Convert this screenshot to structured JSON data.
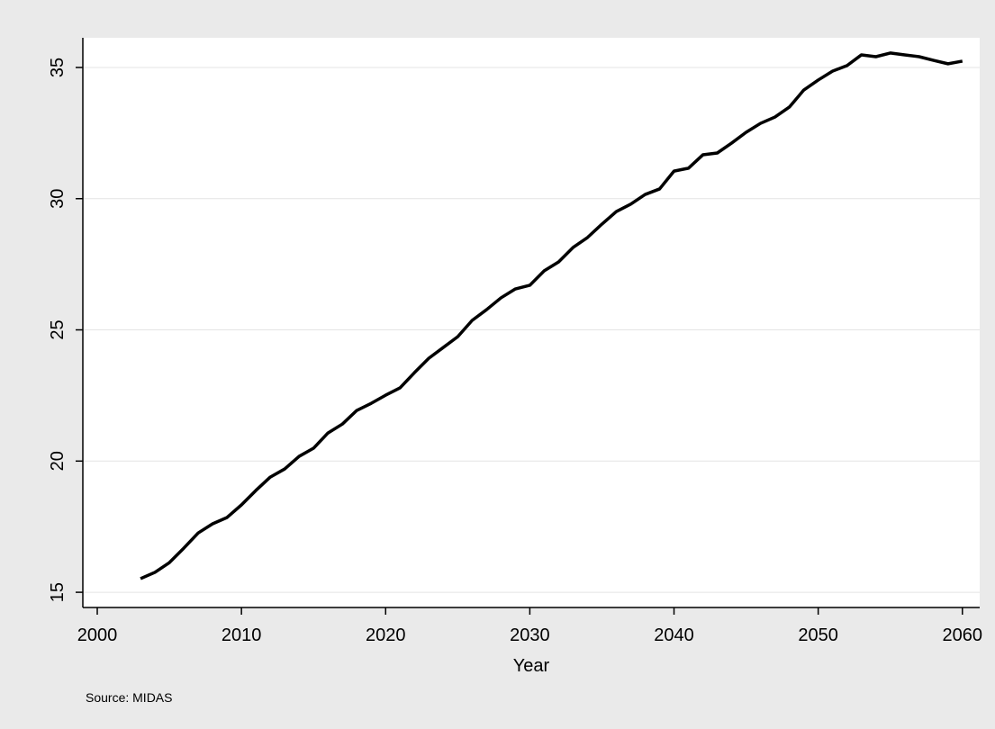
{
  "chart_data": {
    "type": "line",
    "x_label": "Year",
    "note": "Source: MIDAS",
    "x": [
      2003,
      2004,
      2005,
      2006,
      2007,
      2008,
      2009,
      2010,
      2011,
      2012,
      2013,
      2014,
      2015,
      2016,
      2017,
      2018,
      2019,
      2020,
      2021,
      2022,
      2023,
      2024,
      2025,
      2026,
      2027,
      2028,
      2029,
      2030,
      2031,
      2032,
      2033,
      2034,
      2035,
      2036,
      2037,
      2038,
      2039,
      2040,
      2041,
      2042,
      2043,
      2044,
      2045,
      2046,
      2047,
      2048,
      2049,
      2050,
      2051,
      2052,
      2053,
      2054,
      2055,
      2056,
      2057,
      2058,
      2059,
      2060
    ],
    "values": [
      15.52,
      15.76,
      16.13,
      16.68,
      17.26,
      17.61,
      17.85,
      18.33,
      18.88,
      19.39,
      19.7,
      20.18,
      20.49,
      21.07,
      21.41,
      21.93,
      22.2,
      22.51,
      22.79,
      23.37,
      23.92,
      24.33,
      24.74,
      25.36,
      25.77,
      26.22,
      26.56,
      26.7,
      27.25,
      27.59,
      28.14,
      28.52,
      29.03,
      29.51,
      29.79,
      30.16,
      30.37,
      31.05,
      31.16,
      31.67,
      31.74,
      32.12,
      32.53,
      32.87,
      33.11,
      33.49,
      34.14,
      34.52,
      34.86,
      35.07,
      35.48,
      35.41,
      35.55,
      35.48,
      35.41,
      35.27,
      35.14,
      35.24
    ],
    "color": "#000000",
    "xlim": [
      1999,
      2061.2
    ],
    "xticks": [
      2000,
      2010,
      2020,
      2030,
      2040,
      2050,
      2060
    ],
    "ylim": [
      14.42,
      36.13
    ],
    "yticks": [
      15,
      20,
      25,
      30,
      35
    ],
    "grid": true
  }
}
